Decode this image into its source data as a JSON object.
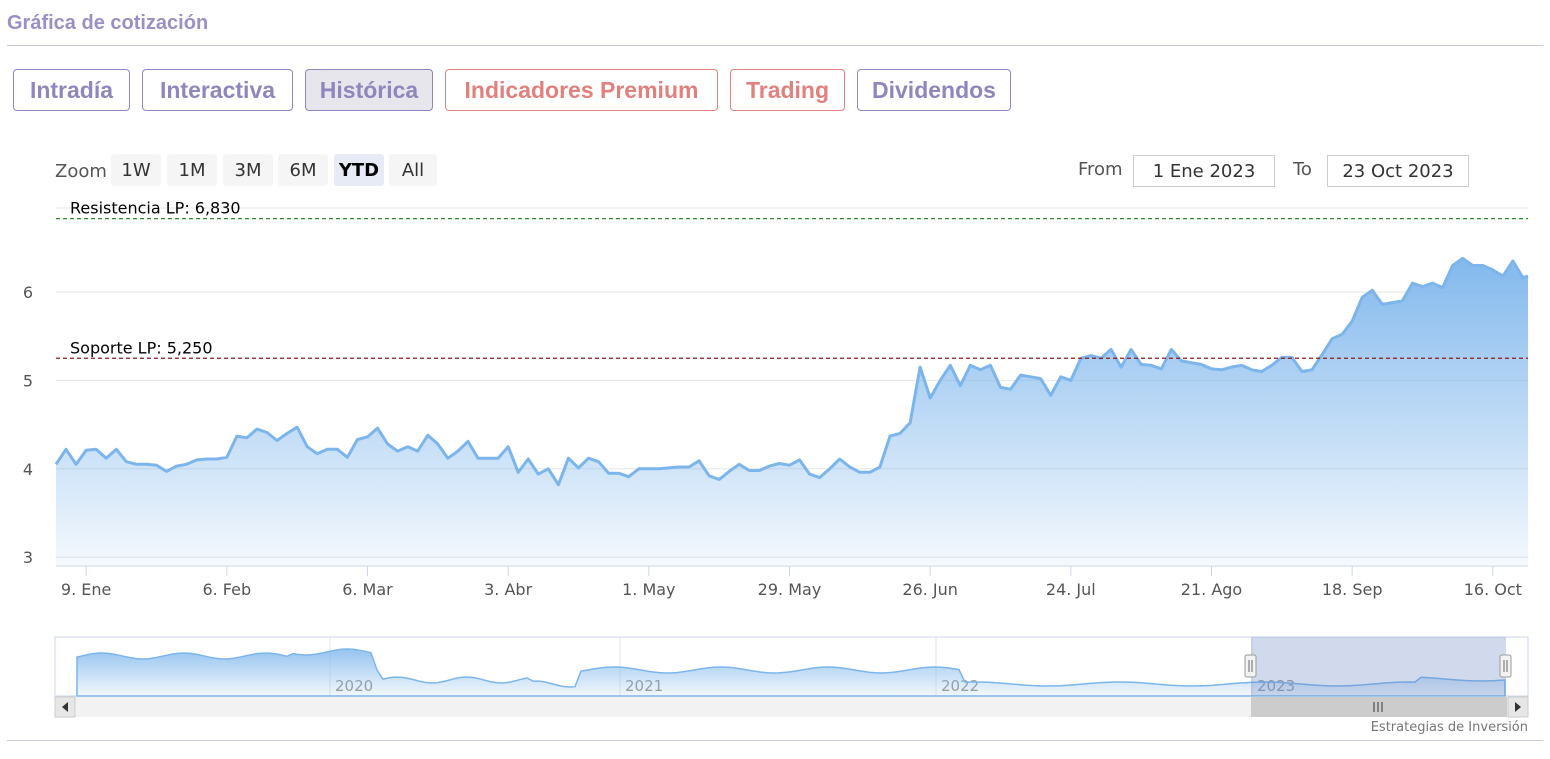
{
  "header": {
    "title": "Gráfica de cotización"
  },
  "tabs": [
    {
      "label": "Intradía",
      "tone": "purple",
      "active": false
    },
    {
      "label": "Interactiva",
      "tone": "purple",
      "active": false
    },
    {
      "label": "Histórica",
      "tone": "purple",
      "active": true
    },
    {
      "label": "Indicadores Premium",
      "tone": "red",
      "active": false
    },
    {
      "label": "Trading",
      "tone": "red",
      "active": false
    },
    {
      "label": "Dividendos",
      "tone": "purple",
      "active": false
    }
  ],
  "zoom": {
    "label": "Zoom",
    "buttons": [
      "1W",
      "1M",
      "3M",
      "6M",
      "YTD",
      "All"
    ],
    "selected": "YTD"
  },
  "range": {
    "from_label": "From",
    "from_value": "1 Ene 2023",
    "to_label": "To",
    "to_value": "23 Oct 2023"
  },
  "colors": {
    "accent_purple": "#8f86bd",
    "accent_red": "#e0817e",
    "series": "#7cb5ec",
    "resistance": "#2e8b2e",
    "support": "#8b1a1a"
  },
  "navigator": {
    "year_labels": [
      "2020",
      "2021",
      "2022",
      "2023"
    ],
    "scroll_icon": "grip-icon"
  },
  "credit": "Estrategias de Inversión",
  "chart_data": {
    "type": "area",
    "title": "",
    "xlabel": "",
    "ylabel": "",
    "ylim": [
      2.9,
      6.95
    ],
    "y_ticks": [
      3,
      4,
      5,
      6
    ],
    "x_range": [
      "2023-01-03",
      "2023-10-23"
    ],
    "x_ticks": [
      {
        "date": "2023-01-09",
        "label": "9. Ene"
      },
      {
        "date": "2023-02-06",
        "label": "6. Feb"
      },
      {
        "date": "2023-03-06",
        "label": "6. Mar"
      },
      {
        "date": "2023-04-03",
        "label": "3. Abr"
      },
      {
        "date": "2023-05-01",
        "label": "1. May"
      },
      {
        "date": "2023-05-29",
        "label": "29. May"
      },
      {
        "date": "2023-06-26",
        "label": "26. Jun"
      },
      {
        "date": "2023-07-24",
        "label": "24. Jul"
      },
      {
        "date": "2023-08-21",
        "label": "21. Ago"
      },
      {
        "date": "2023-09-18",
        "label": "18. Sep"
      },
      {
        "date": "2023-10-16",
        "label": "16. Oct"
      }
    ],
    "grid": true,
    "legend": "none",
    "plot_lines": [
      {
        "label": "Resistencia LP: 6,830",
        "value": 6.83,
        "style": "dashed",
        "color": "#2e8b2e"
      },
      {
        "label": "Soporte LP: 5,250",
        "value": 5.25,
        "style": "dashed",
        "color": "#8b1a1a"
      }
    ],
    "series": [
      {
        "values": [
          [
            "2023-01-03",
            4.05
          ],
          [
            "2023-01-05",
            4.22
          ],
          [
            "2023-01-07",
            4.05
          ],
          [
            "2023-01-09",
            4.21
          ],
          [
            "2023-01-11",
            4.22
          ],
          [
            "2023-01-13",
            4.12
          ],
          [
            "2023-01-15",
            4.22
          ],
          [
            "2023-01-17",
            4.08
          ],
          [
            "2023-01-19",
            4.05
          ],
          [
            "2023-01-21",
            4.05
          ],
          [
            "2023-01-23",
            4.04
          ],
          [
            "2023-01-25",
            3.97
          ],
          [
            "2023-01-27",
            4.03
          ],
          [
            "2023-01-29",
            4.05
          ],
          [
            "2023-01-31",
            4.1
          ],
          [
            "2023-02-02",
            4.11
          ],
          [
            "2023-02-04",
            4.11
          ],
          [
            "2023-02-06",
            4.13
          ],
          [
            "2023-02-08",
            4.37
          ],
          [
            "2023-02-10",
            4.35
          ],
          [
            "2023-02-12",
            4.45
          ],
          [
            "2023-02-14",
            4.41
          ],
          [
            "2023-02-16",
            4.32
          ],
          [
            "2023-02-18",
            4.4
          ],
          [
            "2023-02-20",
            4.47
          ],
          [
            "2023-02-22",
            4.25
          ],
          [
            "2023-02-24",
            4.17
          ],
          [
            "2023-02-26",
            4.22
          ],
          [
            "2023-02-28",
            4.22
          ],
          [
            "2023-03-02",
            4.13
          ],
          [
            "2023-03-04",
            4.33
          ],
          [
            "2023-03-06",
            4.36
          ],
          [
            "2023-03-08",
            4.46
          ],
          [
            "2023-03-10",
            4.28
          ],
          [
            "2023-03-12",
            4.2
          ],
          [
            "2023-03-14",
            4.25
          ],
          [
            "2023-03-16",
            4.2
          ],
          [
            "2023-03-18",
            4.38
          ],
          [
            "2023-03-20",
            4.28
          ],
          [
            "2023-03-22",
            4.12
          ],
          [
            "2023-03-24",
            4.2
          ],
          [
            "2023-03-26",
            4.31
          ],
          [
            "2023-03-28",
            4.12
          ],
          [
            "2023-03-30",
            4.12
          ],
          [
            "2023-04-01",
            4.12
          ],
          [
            "2023-04-03",
            4.25
          ],
          [
            "2023-04-05",
            3.96
          ],
          [
            "2023-04-07",
            4.11
          ],
          [
            "2023-04-09",
            3.94
          ],
          [
            "2023-04-11",
            4.0
          ],
          [
            "2023-04-13",
            3.82
          ],
          [
            "2023-04-15",
            4.12
          ],
          [
            "2023-04-17",
            4.01
          ],
          [
            "2023-04-19",
            4.12
          ],
          [
            "2023-04-21",
            4.08
          ],
          [
            "2023-04-23",
            3.95
          ],
          [
            "2023-04-25",
            3.95
          ],
          [
            "2023-04-27",
            3.91
          ],
          [
            "2023-04-29",
            4.0
          ],
          [
            "2023-05-01",
            4.0
          ],
          [
            "2023-05-03",
            4.0
          ],
          [
            "2023-05-05",
            4.01
          ],
          [
            "2023-05-07",
            4.02
          ],
          [
            "2023-05-09",
            4.02
          ],
          [
            "2023-05-11",
            4.09
          ],
          [
            "2023-05-13",
            3.92
          ],
          [
            "2023-05-15",
            3.88
          ],
          [
            "2023-05-17",
            3.97
          ],
          [
            "2023-05-19",
            4.05
          ],
          [
            "2023-05-21",
            3.98
          ],
          [
            "2023-05-23",
            3.98
          ],
          [
            "2023-05-25",
            4.03
          ],
          [
            "2023-05-27",
            4.06
          ],
          [
            "2023-05-29",
            4.04
          ],
          [
            "2023-05-31",
            4.1
          ],
          [
            "2023-06-02",
            3.94
          ],
          [
            "2023-06-04",
            3.9
          ],
          [
            "2023-06-06",
            4.0
          ],
          [
            "2023-06-08",
            4.11
          ],
          [
            "2023-06-10",
            4.02
          ],
          [
            "2023-06-12",
            3.96
          ],
          [
            "2023-06-14",
            3.96
          ],
          [
            "2023-06-16",
            4.02
          ],
          [
            "2023-06-18",
            4.37
          ],
          [
            "2023-06-20",
            4.4
          ],
          [
            "2023-06-22",
            4.52
          ],
          [
            "2023-06-24",
            5.15
          ],
          [
            "2023-06-26",
            4.8
          ],
          [
            "2023-06-28",
            5.0
          ],
          [
            "2023-06-30",
            5.17
          ],
          [
            "2023-07-02",
            4.94
          ],
          [
            "2023-07-04",
            5.17
          ],
          [
            "2023-07-06",
            5.12
          ],
          [
            "2023-07-08",
            5.17
          ],
          [
            "2023-07-10",
            4.92
          ],
          [
            "2023-07-12",
            4.9
          ],
          [
            "2023-07-14",
            5.06
          ],
          [
            "2023-07-16",
            5.04
          ],
          [
            "2023-07-18",
            5.02
          ],
          [
            "2023-07-20",
            4.83
          ],
          [
            "2023-07-22",
            5.04
          ],
          [
            "2023-07-24",
            5.0
          ],
          [
            "2023-07-26",
            5.25
          ],
          [
            "2023-07-28",
            5.28
          ],
          [
            "2023-07-30",
            5.25
          ],
          [
            "2023-08-01",
            5.35
          ],
          [
            "2023-08-03",
            5.15
          ],
          [
            "2023-08-05",
            5.35
          ],
          [
            "2023-08-07",
            5.18
          ],
          [
            "2023-08-09",
            5.17
          ],
          [
            "2023-08-11",
            5.13
          ],
          [
            "2023-08-13",
            5.35
          ],
          [
            "2023-08-15",
            5.22
          ],
          [
            "2023-08-17",
            5.2
          ],
          [
            "2023-08-19",
            5.18
          ],
          [
            "2023-08-21",
            5.13
          ],
          [
            "2023-08-23",
            5.12
          ],
          [
            "2023-08-25",
            5.15
          ],
          [
            "2023-08-27",
            5.17
          ],
          [
            "2023-08-29",
            5.12
          ],
          [
            "2023-08-31",
            5.1
          ],
          [
            "2023-09-02",
            5.17
          ],
          [
            "2023-09-04",
            5.26
          ],
          [
            "2023-09-06",
            5.26
          ],
          [
            "2023-09-08",
            5.1
          ],
          [
            "2023-09-10",
            5.12
          ],
          [
            "2023-09-12",
            5.29
          ],
          [
            "2023-09-14",
            5.47
          ],
          [
            "2023-09-16",
            5.52
          ],
          [
            "2023-09-18",
            5.67
          ],
          [
            "2023-09-20",
            5.94
          ],
          [
            "2023-09-22",
            6.02
          ],
          [
            "2023-09-24",
            5.86
          ],
          [
            "2023-09-26",
            5.88
          ],
          [
            "2023-09-28",
            5.9
          ],
          [
            "2023-09-30",
            6.1
          ],
          [
            "2023-10-02",
            6.06
          ],
          [
            "2023-10-04",
            6.1
          ],
          [
            "2023-10-06",
            6.05
          ],
          [
            "2023-10-08",
            6.3
          ],
          [
            "2023-10-10",
            6.38
          ],
          [
            "2023-10-12",
            6.3
          ],
          [
            "2023-10-14",
            6.3
          ],
          [
            "2023-10-16",
            6.25
          ],
          [
            "2023-10-18",
            6.18
          ],
          [
            "2023-10-20",
            6.35
          ],
          [
            "2023-10-22",
            6.16
          ],
          [
            "2023-10-23",
            6.18
          ]
        ]
      }
    ]
  }
}
